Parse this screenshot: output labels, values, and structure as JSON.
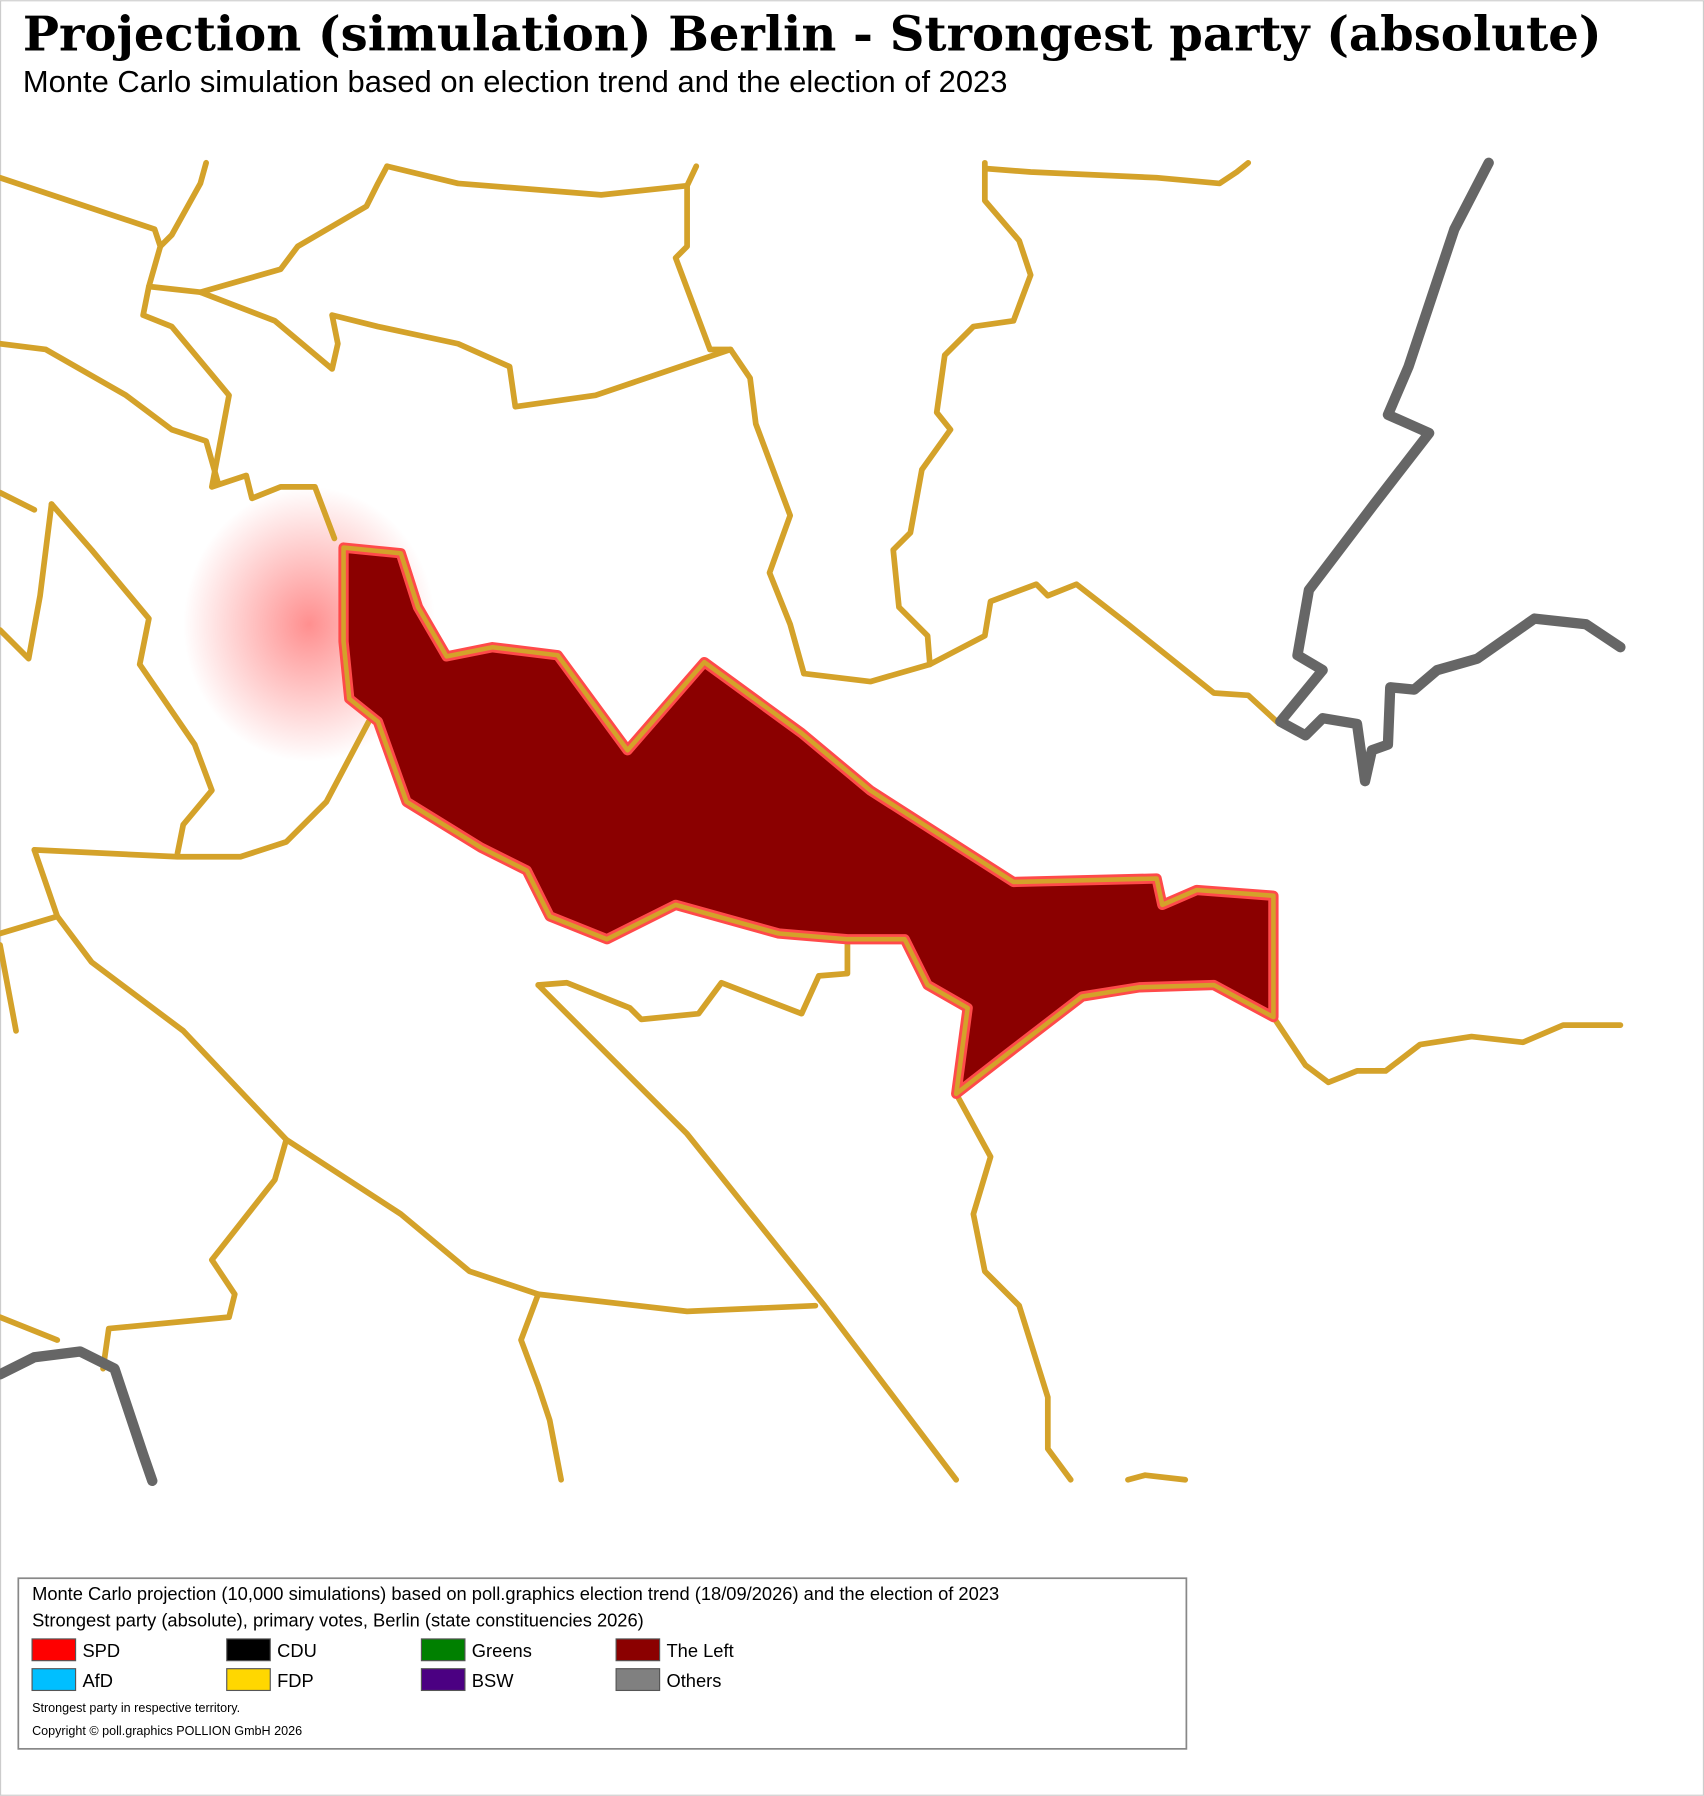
{
  "header": {
    "title": "Projection (simulation) Berlin - Strongest party (absolute)",
    "subtitle": "Monte Carlo simulation based on election trend and the election of 2023"
  },
  "legend": {
    "description": [
      "Monte Carlo projection (10,000 simulations) based on poll.graphics election trend (18/09/2026) and the election of 2023",
      "Strongest party (absolute), primary votes, Berlin (state constituencies 2026)"
    ],
    "entries": [
      {
        "name": "SPD",
        "color": "#ff0000"
      },
      {
        "name": "CDU",
        "color": "#000000"
      },
      {
        "name": "Greens",
        "color": "#008000"
      },
      {
        "name": "The Left",
        "color": "#8b0000"
      },
      {
        "name": "AfD",
        "color": "#00bfff"
      },
      {
        "name": "FDP",
        "color": "#ffd700"
      },
      {
        "name": "BSW",
        "color": "#4b0082"
      },
      {
        "name": "Others",
        "color": "#808080"
      }
    ],
    "notes": [
      "Strongest party in respective territory.",
      "Copyright © poll.graphics POLLION GmbH 2026"
    ]
  }
}
